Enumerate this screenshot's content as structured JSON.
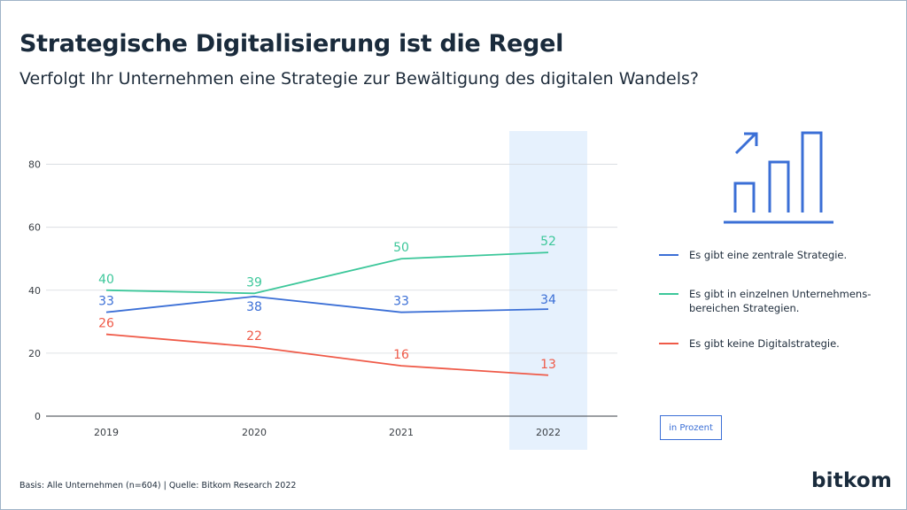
{
  "title": "Strategische Digitalisierung ist die Regel",
  "subtitle": "Verfolgt Ihr Unternehmen eine Strategie zur Bewältigung des digitalen Wandels?",
  "unit_label": "in Prozent",
  "footer": "Basis: Alle Unternehmen (n=604) | Quelle: Bitkom Research 2022",
  "logo": "bitkom",
  "icon": "bar-chart-growth-icon",
  "colors": {
    "blue": "#3b6fd6",
    "green": "#3cc79a",
    "red": "#ef5a48",
    "highlight": "#e6f1fd",
    "grid": "#d5d9de"
  },
  "chart_data": {
    "type": "line",
    "x": [
      "2019",
      "2020",
      "2021",
      "2022"
    ],
    "ylim": [
      0,
      90
    ],
    "yticks": [
      0,
      20,
      40,
      60,
      80
    ],
    "highlight_category": "2022",
    "legend_position": "right",
    "grid": true,
    "series": [
      {
        "name": "Es gibt eine zentrale Strategie.",
        "values": [
          33,
          38,
          33,
          34
        ],
        "color": "#3b6fd6"
      },
      {
        "name": "Es gibt in einzelnen Unternehmens-bereichen Strategien.",
        "values": [
          40,
          39,
          50,
          52
        ],
        "color": "#3cc79a"
      },
      {
        "name": "Es gibt keine Digitalstrategie.",
        "values": [
          26,
          22,
          16,
          13
        ],
        "color": "#ef5a48"
      }
    ]
  }
}
